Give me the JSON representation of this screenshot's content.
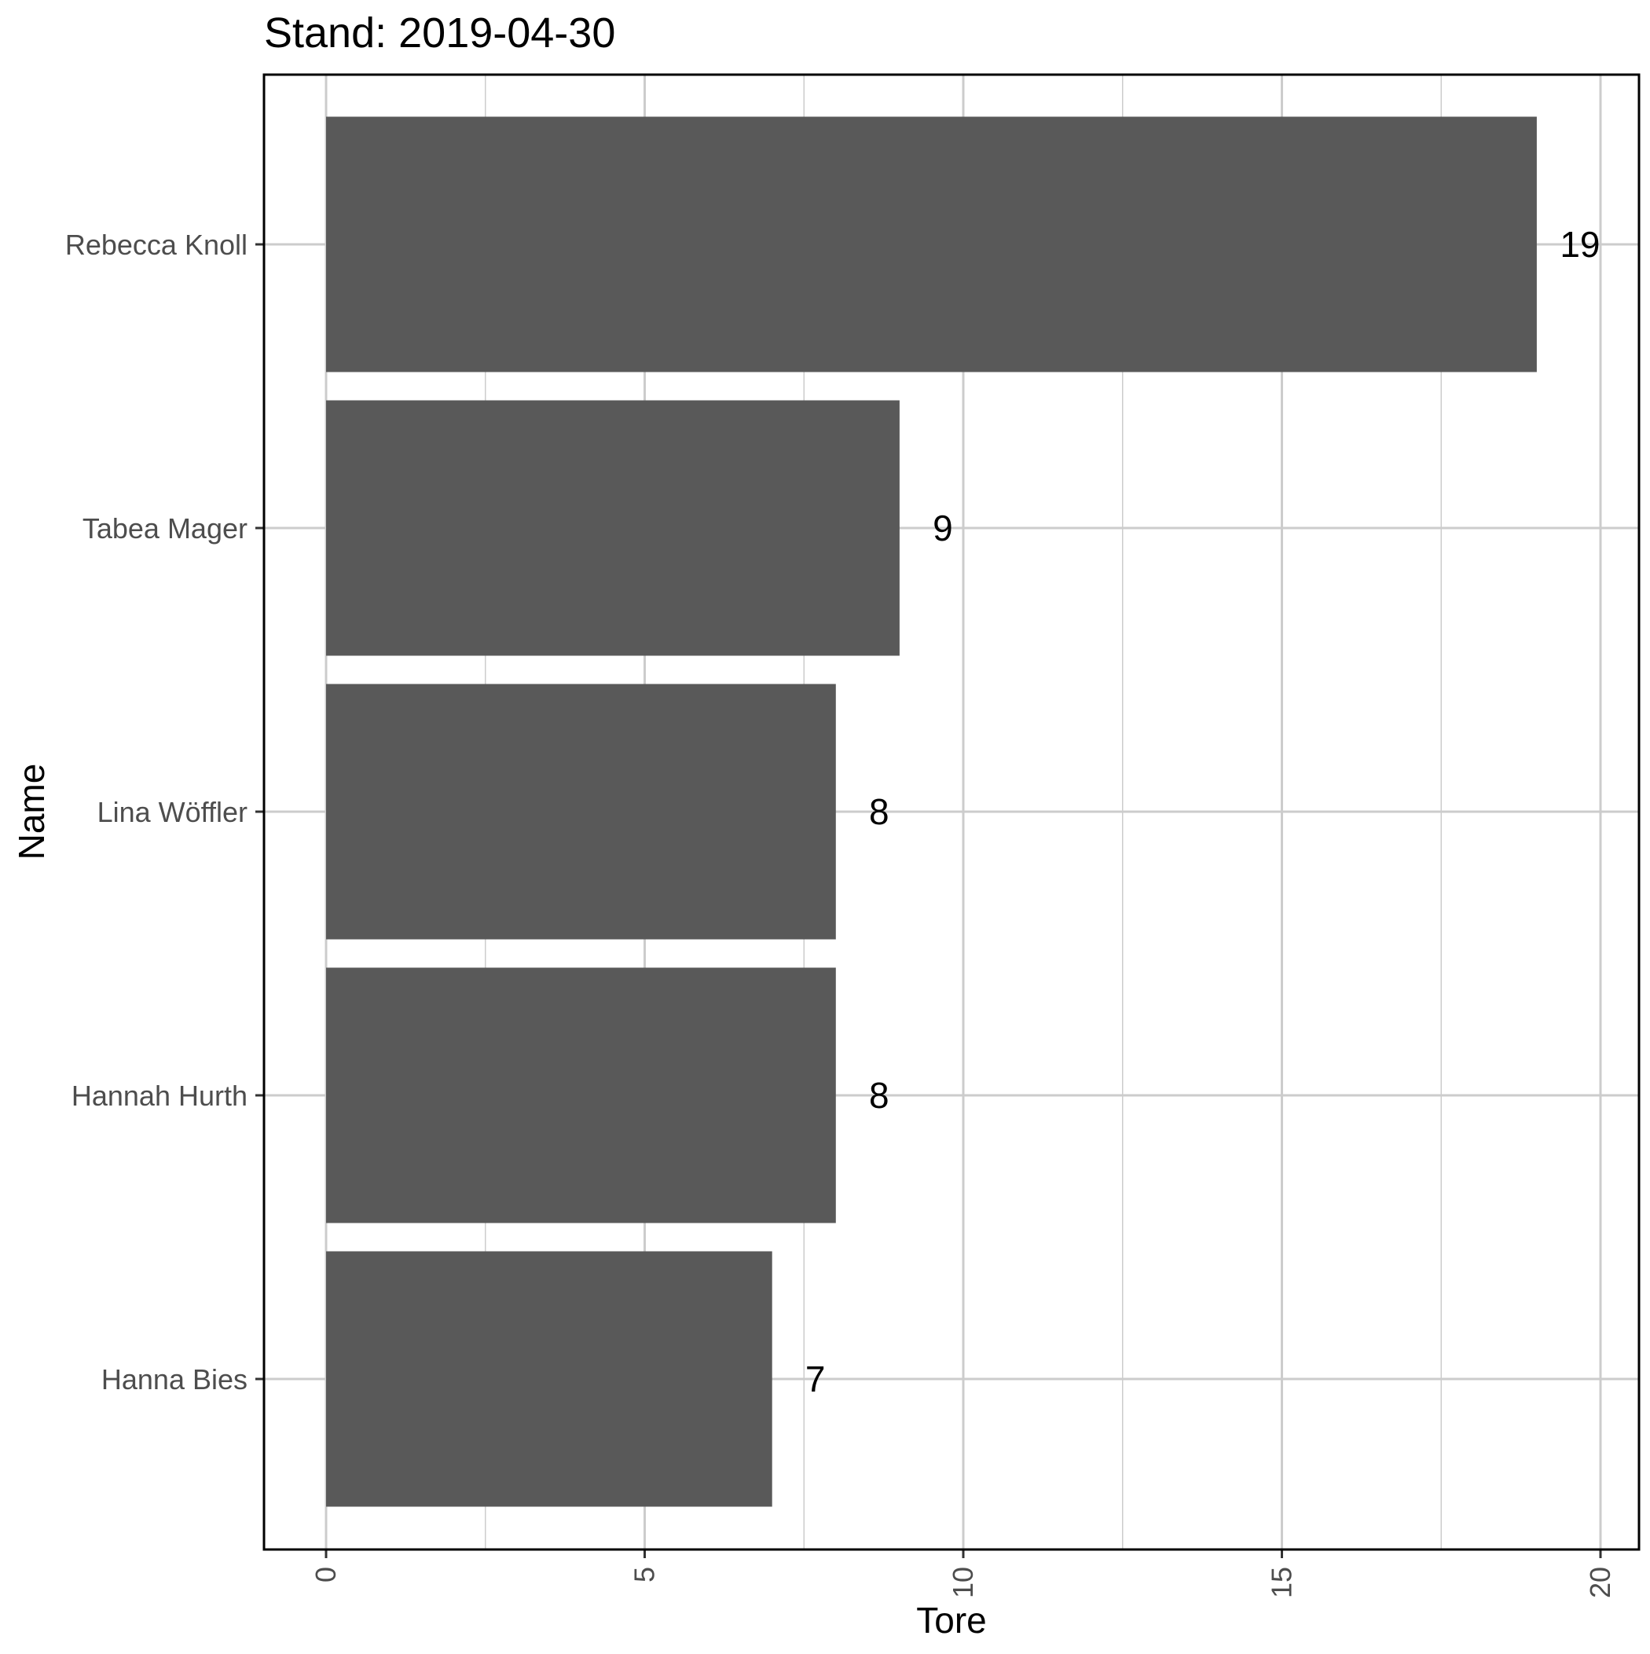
{
  "chart_data": {
    "type": "bar",
    "orientation": "horizontal",
    "title": "Stand: 2019-04-30",
    "xlabel": "Tore",
    "ylabel": "Name",
    "categories": [
      "Rebecca Knoll",
      "Tabea Mager",
      "Lina Wöffler",
      "Hannah Hurth",
      "Hanna Bies"
    ],
    "values": [
      19,
      9,
      8,
      8,
      7
    ],
    "data_labels": [
      "19",
      "9",
      "8",
      "8",
      "7"
    ],
    "xlim": [
      0,
      20
    ],
    "x_ticks": [
      0,
      5,
      10,
      15,
      20
    ],
    "x_tick_labels": [
      "0",
      "5",
      "10",
      "15",
      "20"
    ],
    "grid": true,
    "legend": "none",
    "colors": {
      "bar": "#595959",
      "grid": "#cccccc",
      "panel_border": "#000000",
      "background": "#ffffff"
    }
  }
}
